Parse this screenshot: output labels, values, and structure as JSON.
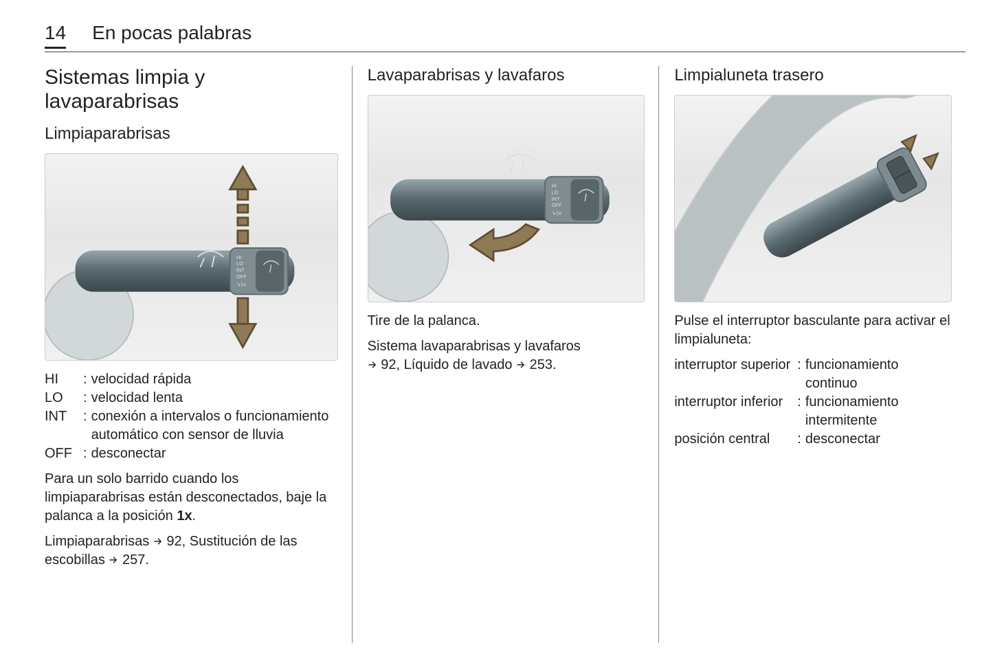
{
  "page_number": "14",
  "section_title": "En pocas palabras",
  "col1": {
    "heading": "Sistemas limpia y lavaparabrisas",
    "subheading": "Limpiaparabrisas",
    "definitions": [
      {
        "key": "HI",
        "val": "velocidad rápida"
      },
      {
        "key": "LO",
        "val": "velocidad lenta"
      },
      {
        "key": "INT",
        "val": "conexión a intervalos o funcionamiento automático con sensor de lluvia"
      },
      {
        "key": "OFF",
        "val": "desconectar"
      }
    ],
    "para1_pre": "Para un solo barrido cuando los limpiaparabrisas están desconecta­dos, baje la palanca a la posición ",
    "para1_bold": "1x",
    "para1_post": ".",
    "para2_a": "Limpiaparabrisas ",
    "para2_ref1": "92",
    "para2_b": ", Sustitución de las escobillas ",
    "para2_ref2": "257",
    "para2_c": "."
  },
  "col2": {
    "heading": "Lavaparabrisas y lavafaros",
    "para1": "Tire de la palanca.",
    "para2_a": "Sistema lavaparabrisas y lavafaros ",
    "para2_ref1": "92",
    "para2_b": ", Líquido de lavado ",
    "para2_ref2": "253",
    "para2_c": "."
  },
  "col3": {
    "heading": "Limpialuneta trasero",
    "para1": "Pulse el interruptor basculante para activar el limpialuneta:",
    "definitions": [
      {
        "key": "interruptor superior",
        "val": "funcionamiento continuo"
      },
      {
        "key": "interruptor infe­rior",
        "val": "funcionamiento intermitente"
      },
      {
        "key": "posición central",
        "val": "desconectar"
      }
    ]
  },
  "figure_colors": {
    "bg_top": "#f4f4f4",
    "bg_bottom": "#e4e4e4",
    "stalk_light": "#8a9aa0",
    "stalk_mid": "#5b6b72",
    "stalk_dark": "#3b474c",
    "ring": "#9aa7ab",
    "label_text": "#d8e0e3",
    "arrow_fill": "#8f7a55",
    "arrow_stroke": "#5e4f33",
    "column": "#cfd4d7"
  }
}
